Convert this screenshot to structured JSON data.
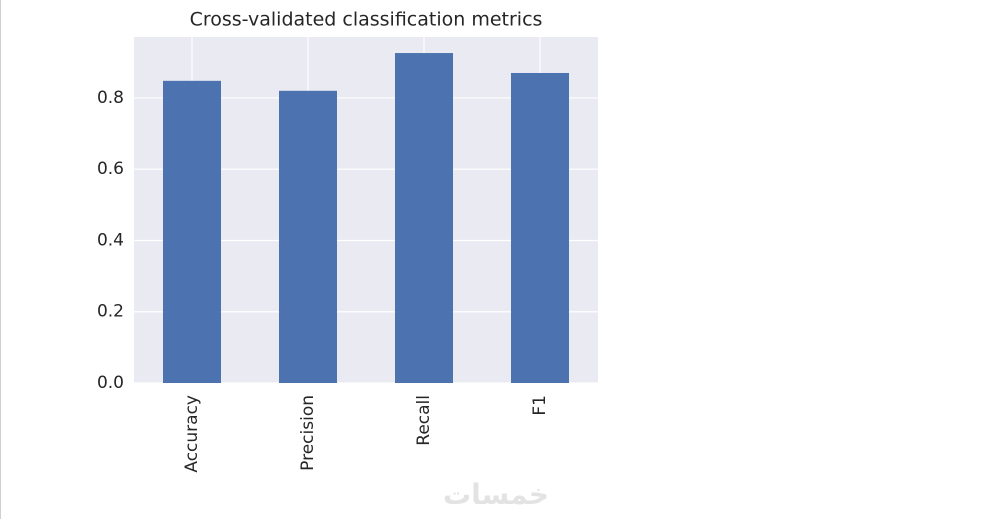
{
  "chart_data": {
    "type": "bar",
    "title": "Cross-validated classification metrics",
    "categories": [
      "Accuracy",
      "Precision",
      "Recall",
      "F1"
    ],
    "values": [
      0.848,
      0.82,
      0.926,
      0.87
    ],
    "color": "#4c72b0",
    "ylim": [
      0,
      0.971
    ],
    "yticks": [
      {
        "value": 0,
        "label": "0.0"
      },
      0.2,
      0.4,
      0.6,
      0.8
    ],
    "grid": true
  },
  "watermark": "خمسات"
}
